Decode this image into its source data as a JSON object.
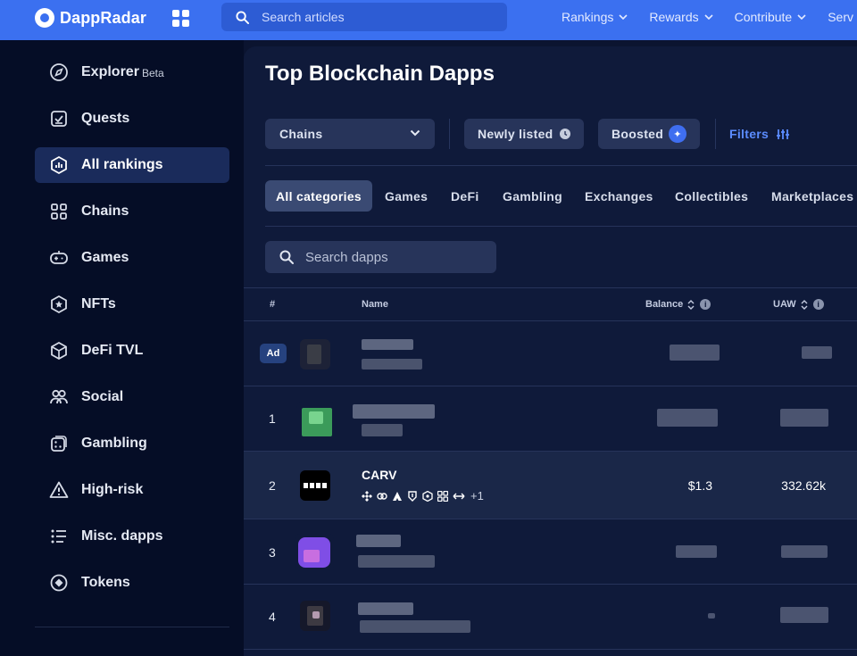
{
  "header": {
    "brand": "DappRadar",
    "search_placeholder": "Search articles",
    "nav": [
      {
        "label": "Rankings"
      },
      {
        "label": "Rewards"
      },
      {
        "label": "Contribute"
      },
      {
        "label": "Serv"
      }
    ],
    "accent_color": "#3b70f0"
  },
  "sidebar": {
    "items": [
      {
        "label": "Explorer",
        "badge": "Beta",
        "icon": "compass-icon"
      },
      {
        "label": "Quests",
        "icon": "checklist-icon"
      },
      {
        "label": "All rankings",
        "icon": "rankings-icon",
        "active": true
      },
      {
        "label": "Chains",
        "icon": "chains-icon"
      },
      {
        "label": "Games",
        "icon": "gamepad-icon"
      },
      {
        "label": "NFTs",
        "icon": "nft-icon"
      },
      {
        "label": "DeFi TVL",
        "icon": "cube-icon"
      },
      {
        "label": "Social",
        "icon": "people-icon"
      },
      {
        "label": "Gambling",
        "icon": "dice-icon"
      },
      {
        "label": "High-risk",
        "icon": "warning-icon"
      },
      {
        "label": "Misc. dapps",
        "icon": "list-icon"
      },
      {
        "label": "Tokens",
        "icon": "token-icon"
      }
    ]
  },
  "main": {
    "title": "Top Blockchain Dapps",
    "filters": {
      "chains_label": "Chains",
      "newly_listed_label": "Newly listed",
      "boosted_label": "Boosted",
      "filters_label": "Filters"
    },
    "categories": [
      {
        "label": "All categories",
        "active": true
      },
      {
        "label": "Games"
      },
      {
        "label": "DeFi"
      },
      {
        "label": "Gambling"
      },
      {
        "label": "Exchanges"
      },
      {
        "label": "Collectibles"
      },
      {
        "label": "Marketplaces"
      }
    ],
    "search_placeholder": "Search dapps",
    "table": {
      "columns": {
        "rank": "#",
        "name": "Name",
        "balance": "Balance",
        "uaw": "UAW"
      },
      "ad_label": "Ad",
      "rows": [
        {
          "rank": "1"
        },
        {
          "rank": "2",
          "name": "CARV",
          "balance": "$1.3",
          "uaw": "332.62k",
          "more_chains": "+1"
        },
        {
          "rank": "3"
        },
        {
          "rank": "4"
        }
      ]
    }
  }
}
